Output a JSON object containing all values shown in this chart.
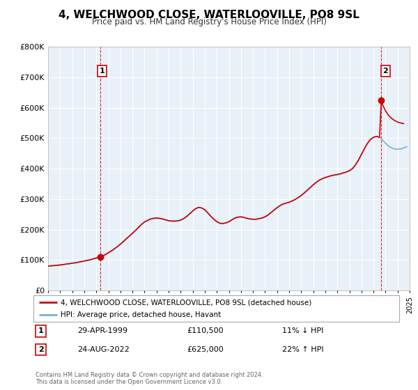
{
  "title": "4, WELCHWOOD CLOSE, WATERLOOVILLE, PO8 9SL",
  "subtitle": "Price paid vs. HM Land Registry's House Price Index (HPI)",
  "legend_line1": "4, WELCHWOOD CLOSE, WATERLOOVILLE, PO8 9SL (detached house)",
  "legend_line2": "HPI: Average price, detached house, Havant",
  "annotation1_label": "1",
  "annotation1_date": "29-APR-1999",
  "annotation1_price": "£110,500",
  "annotation1_hpi": "11% ↓ HPI",
  "annotation2_label": "2",
  "annotation2_date": "24-AUG-2022",
  "annotation2_price": "£625,000",
  "annotation2_hpi": "22% ↑ HPI",
  "footnote": "Contains HM Land Registry data © Crown copyright and database right 2024.\nThis data is licensed under the Open Government Licence v3.0.",
  "sale_color": "#cc0000",
  "hpi_color": "#7ab0d4",
  "bg_color": "#e8f0f8",
  "ylim": [
    0,
    800000
  ],
  "yticks": [
    0,
    100000,
    200000,
    300000,
    400000,
    500000,
    600000,
    700000,
    800000
  ],
  "sale1_x": 1999.32,
  "sale1_y": 110500,
  "sale2_x": 2022.65,
  "sale2_y": 625000,
  "hpi_x": [
    1995.0,
    1995.25,
    1995.5,
    1995.75,
    1996.0,
    1996.25,
    1996.5,
    1996.75,
    1997.0,
    1997.25,
    1997.5,
    1997.75,
    1998.0,
    1998.25,
    1998.5,
    1998.75,
    1999.0,
    1999.25,
    1999.5,
    1999.75,
    2000.0,
    2000.25,
    2000.5,
    2000.75,
    2001.0,
    2001.25,
    2001.5,
    2001.75,
    2002.0,
    2002.25,
    2002.5,
    2002.75,
    2003.0,
    2003.25,
    2003.5,
    2003.75,
    2004.0,
    2004.25,
    2004.5,
    2004.75,
    2005.0,
    2005.25,
    2005.5,
    2005.75,
    2006.0,
    2006.25,
    2006.5,
    2006.75,
    2007.0,
    2007.25,
    2007.5,
    2007.75,
    2008.0,
    2008.25,
    2008.5,
    2008.75,
    2009.0,
    2009.25,
    2009.5,
    2009.75,
    2010.0,
    2010.25,
    2010.5,
    2010.75,
    2011.0,
    2011.25,
    2011.5,
    2011.75,
    2012.0,
    2012.25,
    2012.5,
    2012.75,
    2013.0,
    2013.25,
    2013.5,
    2013.75,
    2014.0,
    2014.25,
    2014.5,
    2014.75,
    2015.0,
    2015.25,
    2015.5,
    2015.75,
    2016.0,
    2016.25,
    2016.5,
    2016.75,
    2017.0,
    2017.25,
    2017.5,
    2017.75,
    2018.0,
    2018.25,
    2018.5,
    2018.75,
    2019.0,
    2019.25,
    2019.5,
    2019.75,
    2020.0,
    2020.25,
    2020.5,
    2020.75,
    2021.0,
    2021.25,
    2021.5,
    2021.75,
    2022.0,
    2022.25,
    2022.5,
    2022.75,
    2023.0,
    2023.25,
    2023.5,
    2023.75,
    2024.0,
    2024.25,
    2024.5,
    2024.75
  ],
  "hpi_y": [
    80000,
    81000,
    82000,
    83000,
    84000,
    85000,
    87000,
    88000,
    90000,
    91000,
    93000,
    95000,
    97000,
    99000,
    101000,
    104000,
    107000,
    109000,
    113000,
    118000,
    124000,
    130000,
    137000,
    144000,
    152000,
    161000,
    170000,
    179000,
    188000,
    197000,
    207000,
    217000,
    225000,
    230000,
    235000,
    237000,
    238000,
    237000,
    235000,
    232000,
    229000,
    228000,
    228000,
    229000,
    231000,
    236000,
    243000,
    252000,
    261000,
    269000,
    273000,
    271000,
    265000,
    255000,
    244000,
    234000,
    226000,
    221000,
    220000,
    222000,
    226000,
    232000,
    238000,
    241000,
    242000,
    240000,
    237000,
    235000,
    234000,
    234000,
    236000,
    238000,
    242000,
    248000,
    256000,
    264000,
    272000,
    279000,
    284000,
    287000,
    290000,
    294000,
    299000,
    305000,
    312000,
    320000,
    329000,
    338000,
    347000,
    355000,
    362000,
    367000,
    371000,
    374000,
    377000,
    379000,
    381000,
    383000,
    386000,
    389000,
    393000,
    400000,
    412000,
    428000,
    447000,
    466000,
    483000,
    496000,
    503000,
    506000,
    503000,
    494000,
    483000,
    474000,
    468000,
    465000,
    464000,
    465000,
    468000,
    472000
  ],
  "sale_x": [
    1995.0,
    1995.25,
    1995.5,
    1995.75,
    1996.0,
    1996.25,
    1996.5,
    1996.75,
    1997.0,
    1997.25,
    1997.5,
    1997.75,
    1998.0,
    1998.25,
    1998.5,
    1998.75,
    1999.0,
    1999.25,
    1999.32,
    1999.5,
    1999.75,
    2000.0,
    2000.25,
    2000.5,
    2000.75,
    2001.0,
    2001.25,
    2001.5,
    2001.75,
    2002.0,
    2002.25,
    2002.5,
    2002.75,
    2003.0,
    2003.25,
    2003.5,
    2003.75,
    2004.0,
    2004.25,
    2004.5,
    2004.75,
    2005.0,
    2005.25,
    2005.5,
    2005.75,
    2006.0,
    2006.25,
    2006.5,
    2006.75,
    2007.0,
    2007.25,
    2007.5,
    2007.75,
    2008.0,
    2008.25,
    2008.5,
    2008.75,
    2009.0,
    2009.25,
    2009.5,
    2009.75,
    2010.0,
    2010.25,
    2010.5,
    2010.75,
    2011.0,
    2011.25,
    2011.5,
    2011.75,
    2012.0,
    2012.25,
    2012.5,
    2012.75,
    2013.0,
    2013.25,
    2013.5,
    2013.75,
    2014.0,
    2014.25,
    2014.5,
    2014.75,
    2015.0,
    2015.25,
    2015.5,
    2015.75,
    2016.0,
    2016.25,
    2016.5,
    2016.75,
    2017.0,
    2017.25,
    2017.5,
    2017.75,
    2018.0,
    2018.25,
    2018.5,
    2018.75,
    2019.0,
    2019.25,
    2019.5,
    2019.75,
    2020.0,
    2020.25,
    2020.5,
    2020.75,
    2021.0,
    2021.25,
    2021.5,
    2021.75,
    2022.0,
    2022.25,
    2022.5,
    2022.65,
    2022.75,
    2023.0,
    2023.25,
    2023.5,
    2023.75,
    2024.0,
    2024.25,
    2024.5
  ],
  "sale_y": [
    80000,
    81000,
    82000,
    83000,
    84000,
    85000,
    87000,
    88000,
    90000,
    91000,
    93000,
    95000,
    97000,
    99000,
    101000,
    104000,
    107000,
    109000,
    110500,
    113000,
    118000,
    124000,
    130000,
    137000,
    144000,
    152000,
    161000,
    170000,
    179000,
    188000,
    197000,
    207000,
    217000,
    225000,
    230000,
    235000,
    237000,
    238000,
    237000,
    235000,
    232000,
    229000,
    228000,
    228000,
    229000,
    231000,
    236000,
    243000,
    252000,
    261000,
    269000,
    273000,
    271000,
    265000,
    255000,
    244000,
    234000,
    226000,
    221000,
    220000,
    222000,
    226000,
    232000,
    238000,
    241000,
    242000,
    240000,
    237000,
    235000,
    234000,
    234000,
    236000,
    238000,
    242000,
    248000,
    256000,
    264000,
    272000,
    279000,
    284000,
    287000,
    290000,
    294000,
    299000,
    305000,
    312000,
    320000,
    329000,
    338000,
    347000,
    355000,
    362000,
    367000,
    371000,
    374000,
    377000,
    379000,
    381000,
    383000,
    386000,
    389000,
    393000,
    400000,
    412000,
    428000,
    447000,
    466000,
    483000,
    496000,
    503000,
    506000,
    503000,
    625000,
    610000,
    590000,
    575000,
    565000,
    558000,
    553000,
    550000,
    548000
  ],
  "xmin": 1995,
  "xmax": 2025
}
